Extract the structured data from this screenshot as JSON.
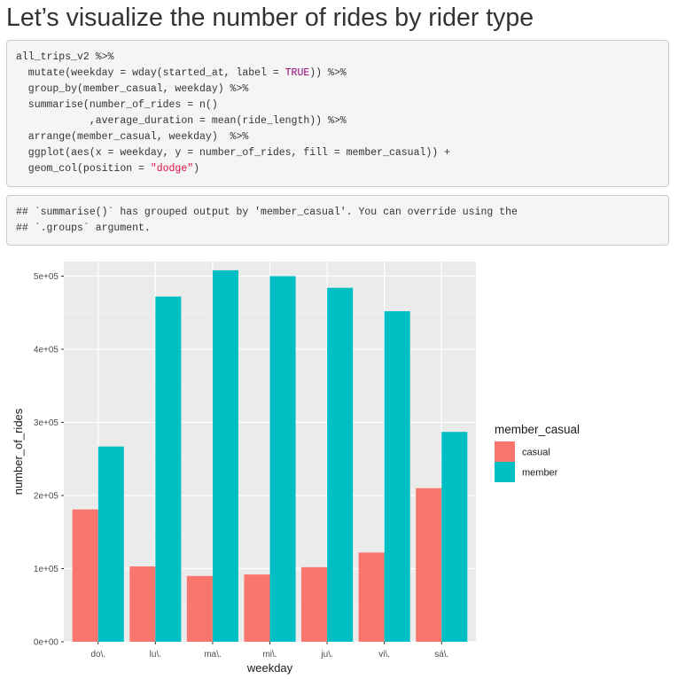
{
  "page": {
    "title": "Let’s visualize the number of rides by rider type"
  },
  "code": {
    "lines": [
      [
        {
          "text": "all_trips_v2 %>%"
        }
      ],
      [
        {
          "text": "  mutate(weekday = wday(started_at, label = "
        },
        {
          "text": "TRUE",
          "cls": "tok-true"
        },
        {
          "text": ")) %>%"
        }
      ],
      [
        {
          "text": "  group_by(member_casual, weekday) %>%"
        }
      ],
      [
        {
          "text": "  summarise(number_of_rides = n()"
        }
      ],
      [
        {
          "text": "            ,average_duration = mean(ride_length)) %>%"
        }
      ],
      [
        {
          "text": "  arrange(member_casual, weekday)  %>%"
        }
      ],
      [
        {
          "text": "  ggplot(aes(x = weekday, y = number_of_rides, fill = member_casual)) +"
        }
      ],
      [
        {
          "text": "  geom_col(position = "
        },
        {
          "text": "\"dodge\"",
          "cls": "tok-str"
        },
        {
          "text": ")"
        }
      ]
    ]
  },
  "output": {
    "lines": [
      "## `summarise()` has grouped output by 'member_casual'. You can override using the",
      "## `.groups` argument."
    ]
  },
  "colors": {
    "panel_background": "#ebebeb",
    "grid_major": "#ffffff",
    "grid_minor": "#f2f2f2",
    "axis_text": "#4d4d4d",
    "axis_title": "#1a1a1a"
  },
  "chart_data": {
    "type": "bar",
    "xlabel": "weekday",
    "ylabel": "number_of_rides",
    "ylim": [
      0,
      520000
    ],
    "yticks": [
      0,
      100000,
      200000,
      300000,
      400000,
      500000
    ],
    "yticklabels": [
      "0e+00",
      "1e+05",
      "2e+05",
      "3e+05",
      "4e+05",
      "5e+05"
    ],
    "categories": [
      "do\\.",
      "lu\\.",
      "ma\\.",
      "mi\\.",
      "ju\\.",
      "vi\\.",
      "sá\\."
    ],
    "grid": true,
    "legend": {
      "title": "member_casual",
      "position": "right"
    },
    "series": [
      {
        "name": "casual",
        "color": "#f8766d",
        "values": [
          181000,
          103000,
          90000,
          92000,
          102000,
          122000,
          210000
        ]
      },
      {
        "name": "member",
        "color": "#00bfc4",
        "values": [
          267000,
          472000,
          508000,
          500000,
          484000,
          452000,
          287000
        ]
      }
    ]
  }
}
